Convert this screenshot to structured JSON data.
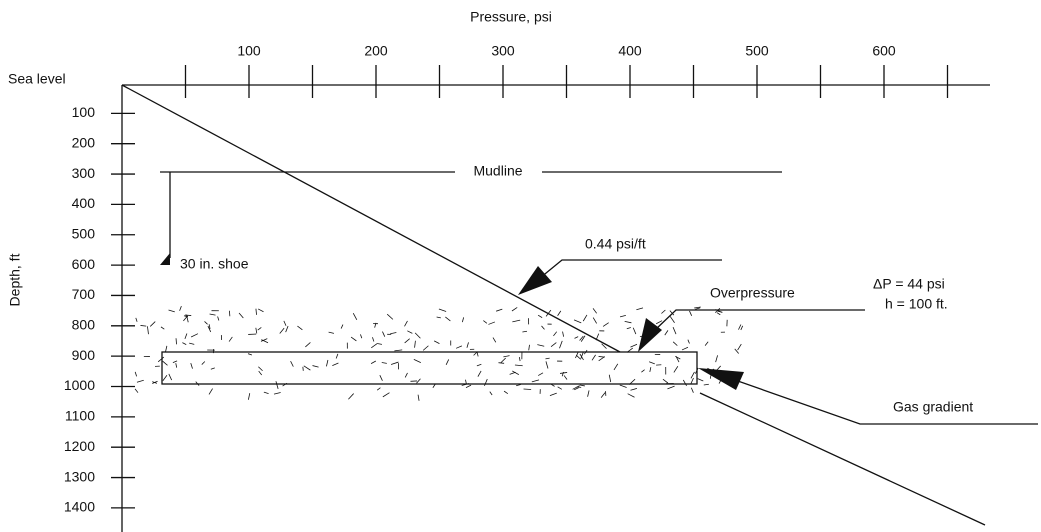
{
  "header": {
    "title": "Pressure, psi"
  },
  "axes": {
    "x": {
      "ticks": [
        100,
        200,
        300,
        400,
        500,
        600
      ]
    },
    "y": {
      "label": "Depth, ft",
      "zero_label": "Sea level",
      "ticks": [
        100,
        200,
        300,
        400,
        500,
        600,
        700,
        800,
        900,
        1000,
        1100,
        1200,
        1300,
        1400
      ]
    }
  },
  "annotations": {
    "mudline": "Mudline",
    "shoe": "30 in. shoe",
    "gradient": "0.44 psi/ft",
    "overpressure": "Overpressure",
    "delta_p": "ΔP = 44 psi",
    "height": "h = 100 ft.",
    "gas_gradient": "Gas gradient"
  }
}
